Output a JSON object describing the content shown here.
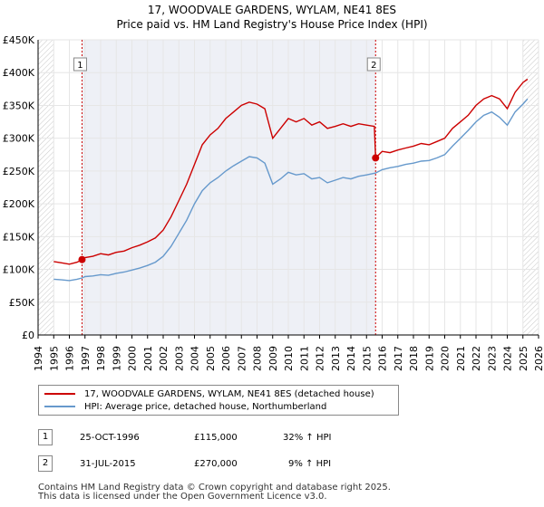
{
  "title": "17, WOODVALE GARDENS, WYLAM, NE41 8ES",
  "subtitle": "Price paid vs. HM Land Registry's House Price Index (HPI)",
  "colors": {
    "property": "#cc0000",
    "hpi": "#6699cc",
    "grid": "#e6e6e6",
    "shade": "#eef0f6"
  },
  "chart_data": {
    "type": "line",
    "title": "17, WOODVALE GARDENS, WYLAM, NE41 8ES",
    "xlabel": "",
    "ylabel": "",
    "xlim": [
      1994,
      2026
    ],
    "ylim": [
      0,
      450000
    ],
    "y_ticks": [
      0,
      50000,
      100000,
      150000,
      200000,
      250000,
      300000,
      350000,
      400000,
      450000
    ],
    "y_tick_labels": [
      "£0",
      "£50K",
      "£100K",
      "£150K",
      "£200K",
      "£250K",
      "£300K",
      "£350K",
      "£400K",
      "£450K"
    ],
    "x_ticks": [
      "1994",
      "1995",
      "1996",
      "1997",
      "1998",
      "1999",
      "2000",
      "2001",
      "2002",
      "2003",
      "2004",
      "2005",
      "2006",
      "2007",
      "2008",
      "2009",
      "2010",
      "2011",
      "2012",
      "2013",
      "2014",
      "2015",
      "2016",
      "2017",
      "2018",
      "2019",
      "2020",
      "2021",
      "2022",
      "2023",
      "2024",
      "2025",
      "2026"
    ],
    "grid": true,
    "legend_position": "below",
    "hatched_ranges": [
      [
        1994,
        1995.0
      ],
      [
        2025.0,
        2026
      ]
    ],
    "series": [
      {
        "name": "17, WOODVALE GARDENS, WYLAM, NE41 8ES (detached house)",
        "color": "#cc0000",
        "points": [
          [
            1995.0,
            112000
          ],
          [
            1995.5,
            110000
          ],
          [
            1996.0,
            108000
          ],
          [
            1996.5,
            111000
          ],
          [
            1996.81,
            115000
          ],
          [
            1997.0,
            118000
          ],
          [
            1997.5,
            120000
          ],
          [
            1998.0,
            124000
          ],
          [
            1998.5,
            122000
          ],
          [
            1999.0,
            126000
          ],
          [
            1999.5,
            128000
          ],
          [
            2000.0,
            133000
          ],
          [
            2000.5,
            137000
          ],
          [
            2001.0,
            142000
          ],
          [
            2001.5,
            148000
          ],
          [
            2002.0,
            160000
          ],
          [
            2002.5,
            180000
          ],
          [
            2003.0,
            205000
          ],
          [
            2003.5,
            230000
          ],
          [
            2004.0,
            260000
          ],
          [
            2004.5,
            290000
          ],
          [
            2005.0,
            305000
          ],
          [
            2005.5,
            315000
          ],
          [
            2006.0,
            330000
          ],
          [
            2006.5,
            340000
          ],
          [
            2007.0,
            350000
          ],
          [
            2007.5,
            355000
          ],
          [
            2008.0,
            352000
          ],
          [
            2008.5,
            345000
          ],
          [
            2009.0,
            300000
          ],
          [
            2009.5,
            315000
          ],
          [
            2010.0,
            330000
          ],
          [
            2010.5,
            325000
          ],
          [
            2011.0,
            330000
          ],
          [
            2011.5,
            320000
          ],
          [
            2012.0,
            325000
          ],
          [
            2012.5,
            315000
          ],
          [
            2013.0,
            318000
          ],
          [
            2013.5,
            322000
          ],
          [
            2014.0,
            318000
          ],
          [
            2014.5,
            322000
          ],
          [
            2015.0,
            320000
          ],
          [
            2015.5,
            318000
          ],
          [
            2015.58,
            270000
          ],
          [
            2016.0,
            280000
          ],
          [
            2016.5,
            278000
          ],
          [
            2017.0,
            282000
          ],
          [
            2017.5,
            285000
          ],
          [
            2018.0,
            288000
          ],
          [
            2018.5,
            292000
          ],
          [
            2019.0,
            290000
          ],
          [
            2019.5,
            295000
          ],
          [
            2020.0,
            300000
          ],
          [
            2020.5,
            315000
          ],
          [
            2021.0,
            325000
          ],
          [
            2021.5,
            335000
          ],
          [
            2022.0,
            350000
          ],
          [
            2022.5,
            360000
          ],
          [
            2023.0,
            365000
          ],
          [
            2023.5,
            360000
          ],
          [
            2024.0,
            345000
          ],
          [
            2024.5,
            370000
          ],
          [
            2025.0,
            385000
          ],
          [
            2025.3,
            390000
          ]
        ]
      },
      {
        "name": "HPI: Average price, detached house, Northumberland",
        "color": "#6699cc",
        "points": [
          [
            1995.0,
            85000
          ],
          [
            1995.5,
            84000
          ],
          [
            1996.0,
            83000
          ],
          [
            1996.5,
            85000
          ],
          [
            1996.81,
            87000
          ],
          [
            1997.0,
            89000
          ],
          [
            1997.5,
            90000
          ],
          [
            1998.0,
            92000
          ],
          [
            1998.5,
            91000
          ],
          [
            1999.0,
            94000
          ],
          [
            1999.5,
            96000
          ],
          [
            2000.0,
            99000
          ],
          [
            2000.5,
            102000
          ],
          [
            2001.0,
            106000
          ],
          [
            2001.5,
            111000
          ],
          [
            2002.0,
            120000
          ],
          [
            2002.5,
            135000
          ],
          [
            2003.0,
            155000
          ],
          [
            2003.5,
            175000
          ],
          [
            2004.0,
            200000
          ],
          [
            2004.5,
            220000
          ],
          [
            2005.0,
            232000
          ],
          [
            2005.5,
            240000
          ],
          [
            2006.0,
            250000
          ],
          [
            2006.5,
            258000
          ],
          [
            2007.0,
            265000
          ],
          [
            2007.5,
            272000
          ],
          [
            2008.0,
            270000
          ],
          [
            2008.5,
            262000
          ],
          [
            2009.0,
            230000
          ],
          [
            2009.5,
            238000
          ],
          [
            2010.0,
            248000
          ],
          [
            2010.5,
            244000
          ],
          [
            2011.0,
            246000
          ],
          [
            2011.5,
            238000
          ],
          [
            2012.0,
            240000
          ],
          [
            2012.5,
            232000
          ],
          [
            2013.0,
            236000
          ],
          [
            2013.5,
            240000
          ],
          [
            2014.0,
            238000
          ],
          [
            2014.5,
            242000
          ],
          [
            2015.0,
            244000
          ],
          [
            2015.58,
            247000
          ],
          [
            2016.0,
            252000
          ],
          [
            2016.5,
            255000
          ],
          [
            2017.0,
            257000
          ],
          [
            2017.5,
            260000
          ],
          [
            2018.0,
            262000
          ],
          [
            2018.5,
            265000
          ],
          [
            2019.0,
            266000
          ],
          [
            2019.5,
            270000
          ],
          [
            2020.0,
            275000
          ],
          [
            2020.5,
            288000
          ],
          [
            2021.0,
            300000
          ],
          [
            2021.5,
            312000
          ],
          [
            2022.0,
            325000
          ],
          [
            2022.5,
            335000
          ],
          [
            2023.0,
            340000
          ],
          [
            2023.5,
            332000
          ],
          [
            2024.0,
            320000
          ],
          [
            2024.5,
            340000
          ],
          [
            2025.0,
            352000
          ],
          [
            2025.3,
            360000
          ]
        ]
      }
    ],
    "markers": [
      {
        "label": "1",
        "x": 1996.81,
        "y": 115000
      },
      {
        "label": "2",
        "x": 2015.58,
        "y": 270000
      }
    ]
  },
  "legend": {
    "property_label": "17, WOODVALE GARDENS, WYLAM, NE41 8ES (detached house)",
    "hpi_label": "HPI: Average price, detached house, Northumberland"
  },
  "annotations": [
    {
      "num": "1",
      "date": "25-OCT-1996",
      "price": "£115,000",
      "hpi": "32% ↑ HPI"
    },
    {
      "num": "2",
      "date": "31-JUL-2015",
      "price": "£270,000",
      "hpi": "9% ↑ HPI"
    }
  ],
  "footer": {
    "line1": "Contains HM Land Registry data © Crown copyright and database right 2025.",
    "line2": "This data is licensed under the Open Government Licence v3.0."
  }
}
